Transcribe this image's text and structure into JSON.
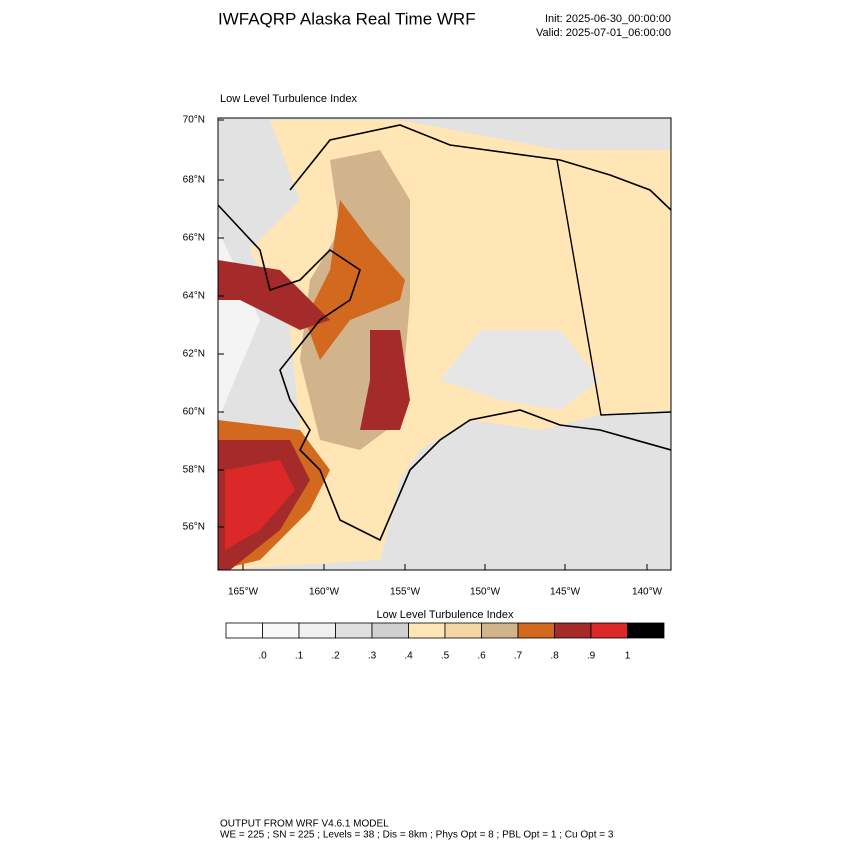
{
  "header": {
    "title": "IWFAQRP Alaska Real Time WRF",
    "init": "Init: 2025-06-30_00:00:00",
    "valid": "Valid: 2025-07-01_06:00:00"
  },
  "map": {
    "subtitle": "Low Level Turbulence Index",
    "lat_labels": [
      "70°N",
      "68°N",
      "66°N",
      "64°N",
      "62°N",
      "60°N",
      "58°N",
      "56°N"
    ],
    "lon_labels": [
      "165°W",
      "160°W",
      "155°W",
      "150°W",
      "145°W",
      "140°W"
    ]
  },
  "colorbar": {
    "title": "Low Level Turbulence Index",
    "colors": [
      "#ffffff",
      "#f8f8f8",
      "#f0f0f0",
      "#e0e0e0",
      "#d0d0d0",
      "#ffe6b4",
      "#f5d7a5",
      "#d2b48c",
      "#d2691e",
      "#a52a2a",
      "#dc2828",
      "#000000"
    ],
    "labels": [
      ".0",
      ".1",
      ".2",
      ".3",
      ".4",
      ".5",
      ".6",
      ".7",
      ".8",
      ".9",
      "1"
    ]
  },
  "footer": {
    "line1": "OUTPUT FROM WRF V4.6.1 MODEL",
    "line2": "WE = 225 ; SN = 225 ; Levels = 38 ; Dis = 8km ; Phys Opt = 8 ; PBL Opt = 1 ; Cu Opt = 3"
  }
}
